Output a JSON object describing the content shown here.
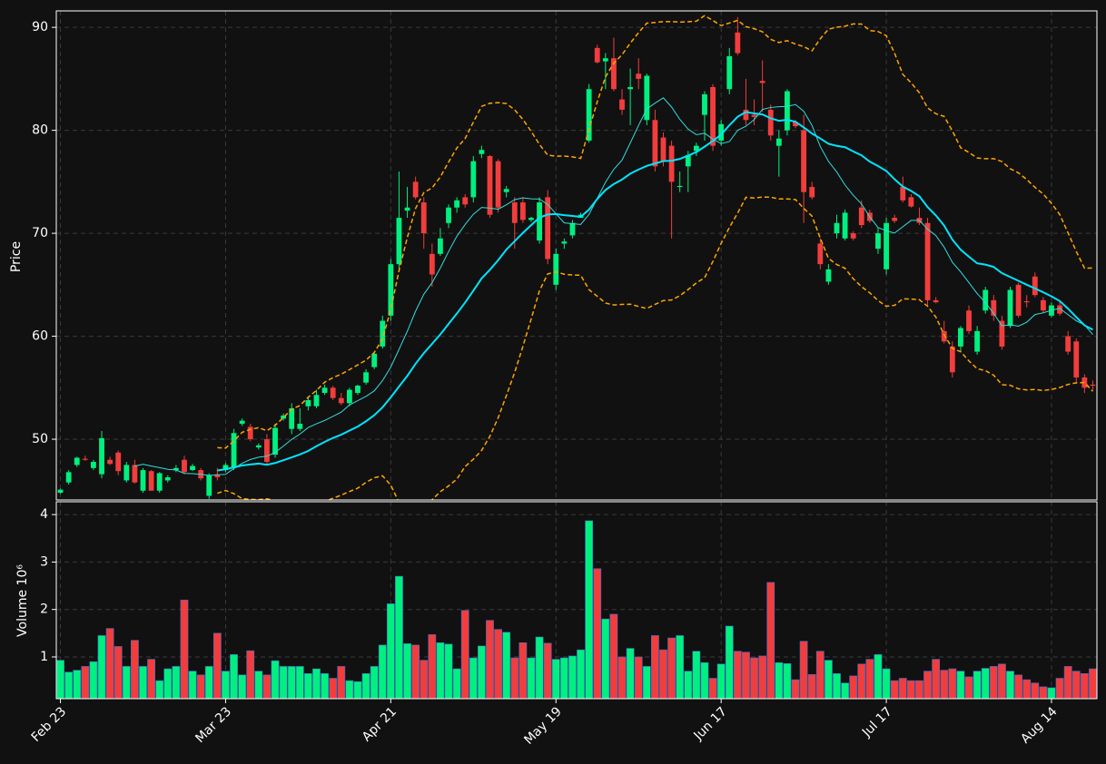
{
  "chart_data": {
    "type": "candlestick",
    "ylabel": "Price",
    "volume_label": "Volume  10⁶",
    "xlim": [
      -0.5,
      125.5
    ],
    "xticks": [
      {
        "value": 0,
        "label": "Feb 23"
      },
      {
        "value": 20,
        "label": "Mar 23"
      },
      {
        "value": 40,
        "label": "Apr 21"
      },
      {
        "value": 60,
        "label": "May 19"
      },
      {
        "value": 80,
        "label": "Jun 17"
      },
      {
        "value": 100,
        "label": "Jul 17"
      },
      {
        "value": 120,
        "label": "Aug 14"
      }
    ],
    "ylim": [
      44.1,
      91.6
    ],
    "yticks": [
      50,
      60,
      70,
      80,
      90
    ],
    "volume_ylim": [
      0.12,
      4.27
    ],
    "volume_yticks": [
      1,
      2,
      3,
      4
    ],
    "grid": true,
    "up_color": "#00f07f",
    "down_color": "#f23d3d",
    "moving_averages": [
      {
        "window": 10,
        "color": "#33dddd",
        "width": 1
      },
      {
        "window": 20,
        "color": "#00e5ff",
        "width": 2
      }
    ],
    "bollinger": {
      "window": 20,
      "std": 2,
      "color": "#ffa500"
    },
    "open": [
      44.8,
      45.8,
      47.5,
      48.1,
      47.2,
      46.6,
      48.0,
      48.7,
      46,
      47.5,
      45,
      46.9,
      45,
      46.0,
      47,
      48,
      47,
      47,
      44.5,
      46.6,
      47,
      47.2,
      51.5,
      51.2,
      49.2,
      50,
      48.5,
      52,
      51,
      51,
      53.2,
      53.2,
      54.5,
      55,
      54,
      53.5,
      54.5,
      55.5,
      57,
      59,
      62,
      67,
      72.2,
      75,
      73,
      68,
      68,
      71,
      72.5,
      73.5,
      73.5,
      77.7,
      77.5,
      77,
      74,
      73,
      73,
      71.3,
      69.3,
      73.5,
      65,
      69,
      69.8,
      71.5,
      79,
      88,
      86.7,
      87,
      83,
      84,
      85.5,
      81,
      81,
      79.3,
      78.5,
      74.5,
      76.5,
      78,
      81.5,
      84.2,
      79,
      84,
      89.5,
      82,
      81.5,
      84.8,
      82,
      78.5,
      80,
      80.8,
      80,
      74.5,
      69,
      65.3,
      70,
      69.5,
      70,
      72.5,
      72,
      68.5,
      66.5,
      71.5,
      74.5,
      73.5,
      71.5,
      71,
      63.5,
      60.5,
      59,
      59,
      62.5,
      58.5,
      62.5,
      63.5,
      61.5,
      61,
      65,
      63.4,
      65.8,
      63.5,
      62,
      63,
      60,
      59.5,
      56,
      55.3
    ],
    "high": [
      45.2,
      47,
      48.3,
      48.4,
      48.0,
      50.8,
      48.3,
      48.9,
      47.8,
      48,
      47.2,
      47,
      46.8,
      46.5,
      47.5,
      48.4,
      47.6,
      47.2,
      46.7,
      47.2,
      47.7,
      51,
      52,
      51.5,
      49.6,
      50.5,
      51.5,
      52.5,
      53.5,
      53,
      54,
      54.8,
      55.3,
      55.2,
      54.5,
      55,
      55.3,
      56.8,
      58.5,
      62,
      67.5,
      76,
      74.5,
      75.5,
      73.5,
      69,
      70.5,
      72.8,
      73.5,
      73.8,
      77.5,
      78.5,
      77.6,
      77.2,
      74.6,
      73.5,
      73.5,
      71.6,
      73.5,
      74.2,
      68.5,
      69.5,
      71.3,
      72,
      84.5,
      88.3,
      87.5,
      89,
      84,
      86,
      87,
      85.5,
      82,
      79.8,
      79,
      76,
      78,
      78.8,
      83.8,
      84.5,
      81,
      88,
      91,
      85,
      83,
      86.8,
      82.5,
      80,
      84,
      81,
      81.5,
      75,
      69.5,
      67,
      71.8,
      72.3,
      70.2,
      73.2,
      72.3,
      70.5,
      71.5,
      71.8,
      75.5,
      73.8,
      72.5,
      71.5,
      63.8,
      61.5,
      59.5,
      61,
      63,
      61,
      64.8,
      64,
      62,
      64.8,
      65.2,
      64,
      66.2,
      63.8,
      63.3,
      63.5,
      60.5,
      59.8,
      56.3,
      55.7
    ],
    "low": [
      44.7,
      45.6,
      47.3,
      47.9,
      47.0,
      46.2,
      47.5,
      46.5,
      45.8,
      45.7,
      44.8,
      45.0,
      44.8,
      45.8,
      46.8,
      46.6,
      46.9,
      46,
      44.2,
      46.0,
      46.8,
      47,
      51.3,
      49.8,
      49.0,
      47.5,
      48.2,
      51.8,
      50.5,
      50.8,
      52.8,
      53,
      54.3,
      53.8,
      53.3,
      53.2,
      54.3,
      55.3,
      56.8,
      58.8,
      61.5,
      66.5,
      71.5,
      73.3,
      68.5,
      64.8,
      67.8,
      70.5,
      72,
      72.5,
      73,
      77.3,
      71.5,
      72,
      73.5,
      68.5,
      71,
      71.1,
      69,
      67,
      64.5,
      68.5,
      69.5,
      71.5,
      78.8,
      86.5,
      84,
      83.8,
      81.5,
      80.5,
      84,
      80.5,
      76,
      76.5,
      69.5,
      74,
      74,
      77.5,
      79,
      78,
      78.5,
      83.5,
      87.3,
      80.5,
      80.5,
      81.8,
      79,
      75.5,
      79.5,
      80.2,
      71,
      73.3,
      66.5,
      65,
      69.5,
      69.3,
      69.3,
      70.5,
      71,
      68,
      66,
      71,
      73,
      72.5,
      70.8,
      63,
      63.2,
      59.3,
      56,
      58.5,
      60.2,
      58.2,
      62.2,
      61.5,
      58.7,
      60.8,
      61.8,
      62.8,
      63.8,
      62.3,
      61.8,
      62,
      58.2,
      55.5,
      54.5,
      54.8
    ],
    "close": [
      45.1,
      46.8,
      48.2,
      48.0,
      47.8,
      50.1,
      47.6,
      46.9,
      47.5,
      45.8,
      47,
      45.0,
      46.7,
      46.3,
      47.2,
      46.8,
      47.4,
      46.2,
      46.5,
      46.3,
      47.5,
      50.6,
      51.8,
      50.0,
      49.4,
      47.8,
      51.1,
      52.3,
      53,
      51.5,
      53.8,
      54.3,
      55,
      54.0,
      53.5,
      54.8,
      55.2,
      56.5,
      58.3,
      61.5,
      67,
      71.5,
      72.5,
      73.5,
      70,
      66,
      69.5,
      72.5,
      73.2,
      72.8,
      77,
      78.1,
      71.8,
      72.5,
      74.3,
      71,
      71.3,
      71.5,
      73,
      67.5,
      68,
      69.2,
      71,
      71.8,
      84,
      86.6,
      87,
      84,
      82,
      84.2,
      85,
      85.3,
      76.5,
      77,
      75,
      74.6,
      77.6,
      78.5,
      83.5,
      78.5,
      80.6,
      87.2,
      87.5,
      81,
      81.3,
      84.6,
      79.5,
      79.2,
      83.8,
      80.4,
      74,
      73.5,
      67,
      66.5,
      71,
      72,
      69.5,
      70.8,
      71.2,
      70,
      71,
      71.2,
      73.2,
      72.6,
      71,
      63.5,
      63.3,
      59.5,
      56.5,
      60.8,
      60.5,
      60.5,
      64.5,
      62,
      59,
      64.5,
      62,
      63.3,
      64,
      62.5,
      63,
      62.2,
      58.5,
      56,
      55,
      55.2
    ],
    "volume": [
      0.93,
      0.68,
      0.72,
      0.8,
      0.9,
      1.45,
      1.6,
      1.22,
      0.8,
      1.35,
      0.8,
      0.95,
      0.5,
      0.75,
      0.8,
      2.2,
      0.7,
      0.62,
      0.8,
      1.5,
      0.7,
      1.05,
      0.62,
      1.13,
      0.7,
      0.62,
      0.92,
      0.8,
      0.8,
      0.8,
      0.65,
      0.75,
      0.65,
      0.55,
      0.8,
      0.5,
      0.48,
      0.65,
      0.8,
      1.25,
      2.12,
      2.7,
      1.28,
      1.25,
      0.93,
      1.47,
      1.3,
      1.27,
      0.75,
      1.98,
      0.98,
      1.23,
      1.77,
      1.58,
      1.52,
      0.98,
      1.3,
      0.98,
      1.42,
      1.29,
      0.95,
      0.98,
      1.02,
      1.15,
      3.87,
      2.86,
      1.8,
      1.9,
      1.0,
      1.18,
      1.0,
      0.8,
      1.45,
      1.15,
      1.4,
      1.45,
      0.7,
      1.12,
      0.88,
      0.55,
      0.85,
      1.65,
      1.12,
      1.1,
      0.98,
      1.02,
      2.57,
      0.88,
      0.86,
      0.52,
      1.33,
      0.63,
      1.12,
      0.93,
      0.65,
      0.45,
      0.6,
      0.85,
      0.95,
      1.05,
      0.75,
      0.5,
      0.55,
      0.5,
      0.5,
      0.7,
      0.95,
      0.72,
      0.75,
      0.7,
      0.58,
      0.7,
      0.76,
      0.8,
      0.85,
      0.7,
      0.62,
      0.52,
      0.45,
      0.37,
      0.35,
      0.55,
      0.8,
      0.7,
      0.65,
      0.75
    ]
  }
}
